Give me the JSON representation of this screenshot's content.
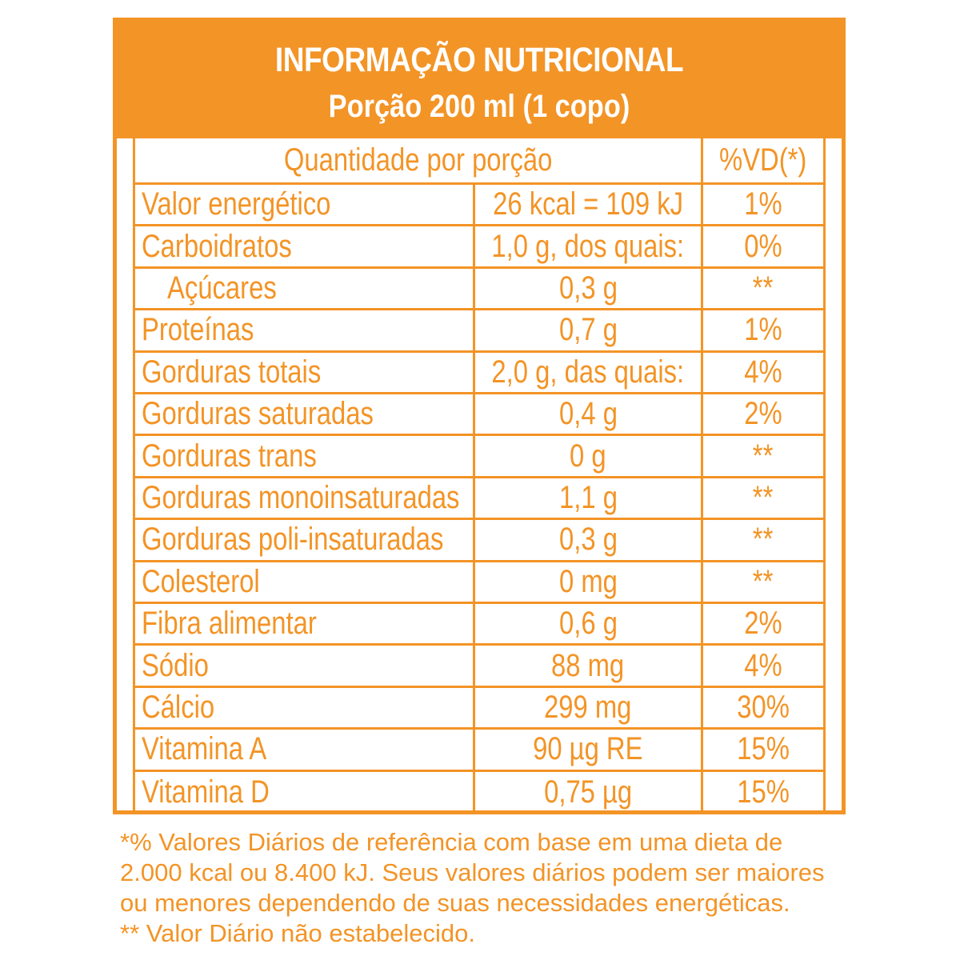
{
  "header": {
    "title": "INFORMAÇÃO NUTRICIONAL",
    "subtitle": "Porção 200 ml (1 copo)"
  },
  "table": {
    "heading_quantity": "Quantidade por porção",
    "heading_vd": "%VD(*)",
    "rows": [
      {
        "name": "Valor energético",
        "amount": "26 kcal = 109 kJ",
        "vd": "1%"
      },
      {
        "name": "Carboidratos",
        "amount": "1,0 g, dos quais:",
        "vd": "0%"
      },
      {
        "name": "Açúcares",
        "amount": "0,3 g",
        "vd": "**"
      },
      {
        "name": "Proteínas",
        "amount": "0,7 g",
        "vd": "1%"
      },
      {
        "name": "Gorduras totais",
        "amount": "2,0 g, das quais:",
        "vd": "4%"
      },
      {
        "name": "Gorduras saturadas",
        "amount": "0,4 g",
        "vd": "2%"
      },
      {
        "name": "Gorduras trans",
        "amount": "0 g",
        "vd": "**"
      },
      {
        "name": "Gorduras monoinsaturadas",
        "amount": "1,1 g",
        "vd": "**"
      },
      {
        "name": "Gorduras poli-insaturadas",
        "amount": "0,3 g",
        "vd": "**"
      },
      {
        "name": "Colesterol",
        "amount": "0 mg",
        "vd": "**"
      },
      {
        "name": "Fibra alimentar",
        "amount": "0,6 g",
        "vd": "2%"
      },
      {
        "name": "Sódio",
        "amount": "88 mg",
        "vd": "4%"
      },
      {
        "name": "Cálcio",
        "amount": "299 mg",
        "vd": "30%"
      },
      {
        "name": "Vitamina A",
        "amount": "90 µg RE",
        "vd": "15%"
      },
      {
        "name": "Vitamina D",
        "amount": "0,75 µg",
        "vd": "15%"
      }
    ]
  },
  "footnote": {
    "line1": "*% Valores Diários de referência com base em uma dieta de",
    "line2": "2.000 kcal ou 8.400 kJ. Seus valores diários podem ser maiores",
    "line3": "ou menores dependendo de suas necessidades energéticas.",
    "line4": "** Valor Diário não estabelecido."
  },
  "colors": {
    "accent": "#f39426",
    "background": "#ffffff"
  }
}
